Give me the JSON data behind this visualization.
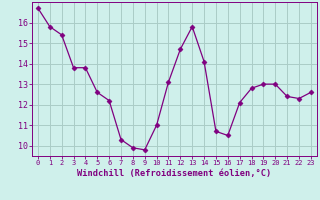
{
  "x": [
    0,
    1,
    2,
    3,
    4,
    5,
    6,
    7,
    8,
    9,
    10,
    11,
    12,
    13,
    14,
    15,
    16,
    17,
    18,
    19,
    20,
    21,
    22,
    23
  ],
  "y": [
    16.7,
    15.8,
    15.4,
    13.8,
    13.8,
    12.6,
    12.2,
    10.3,
    9.9,
    9.8,
    11.0,
    13.1,
    14.7,
    15.8,
    14.1,
    10.7,
    10.5,
    12.1,
    12.8,
    13.0,
    13.0,
    12.4,
    12.3,
    12.6
  ],
  "line_color": "#800080",
  "marker": "D",
  "marker_size": 2.5,
  "bg_color": "#cff0eb",
  "grid_color": "#aaccc6",
  "xlabel": "Windchill (Refroidissement éolien,°C)",
  "xlabel_color": "#800080",
  "tick_color": "#800080",
  "spine_color": "#800080",
  "ylim": [
    9.5,
    17.0
  ],
  "xlim": [
    -0.5,
    23.5
  ],
  "yticks": [
    10,
    11,
    12,
    13,
    14,
    15,
    16
  ],
  "xticks": [
    0,
    1,
    2,
    3,
    4,
    5,
    6,
    7,
    8,
    9,
    10,
    11,
    12,
    13,
    14,
    15,
    16,
    17,
    18,
    19,
    20,
    21,
    22,
    23
  ]
}
